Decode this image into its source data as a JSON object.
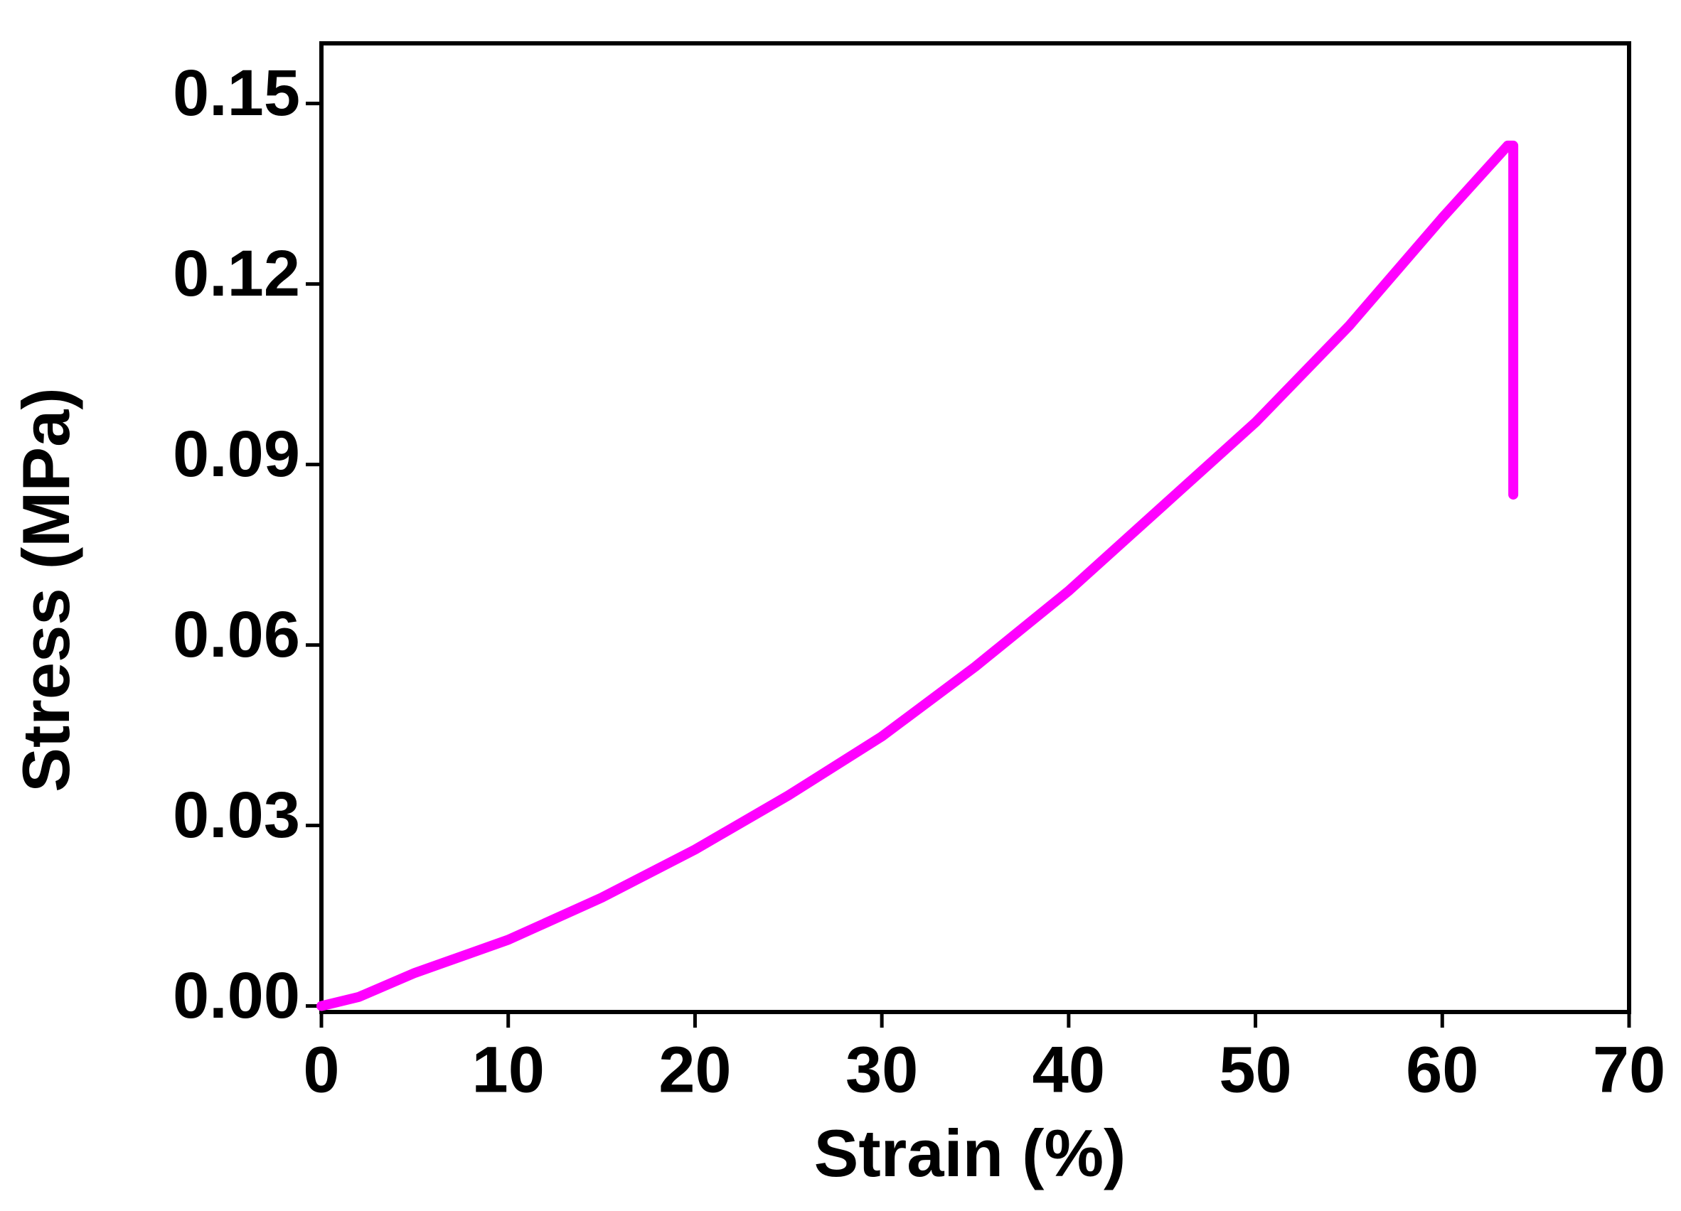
{
  "chart_data": {
    "type": "line",
    "x_label": "Strain (%)",
    "y_label": "Stress (MPa)",
    "x": [
      0,
      2,
      5,
      10,
      15,
      20,
      25,
      30,
      35,
      40,
      45,
      50,
      55,
      60,
      63.5,
      63.8,
      63.8
    ],
    "series": [
      {
        "name": "Stress",
        "color": "#ff00ff",
        "values": [
          0,
          0.0015,
          0.0055,
          0.011,
          0.018,
          0.026,
          0.035,
          0.0448,
          0.0564,
          0.069,
          0.083,
          0.097,
          0.113,
          0.131,
          0.143,
          0.143,
          0.085
        ]
      }
    ],
    "xlim": [
      0,
      70
    ],
    "xticks": [
      0,
      10,
      20,
      30,
      40,
      50,
      60,
      70
    ],
    "ylim": [
      -0.001,
      0.16
    ],
    "yticks": [
      {
        "value": 0,
        "label": "0.00"
      },
      0.03,
      0.06,
      0.09,
      0.12,
      0.15
    ],
    "grid": false
  }
}
